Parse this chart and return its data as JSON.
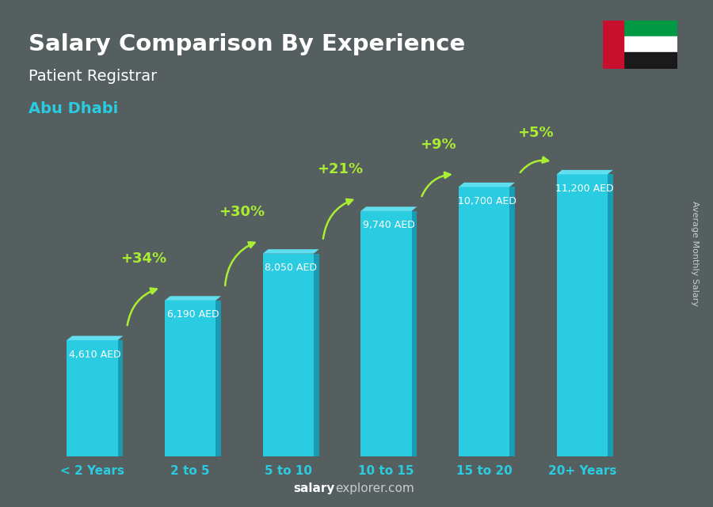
{
  "title": "Salary Comparison By Experience",
  "subtitle1": "Patient Registrar",
  "subtitle2": "Abu Dhabi",
  "ylabel": "Average Monthly Salary",
  "footer_bold": "salary",
  "footer_normal": "explorer.com",
  "categories": [
    "< 2 Years",
    "2 to 5",
    "5 to 10",
    "10 to 15",
    "15 to 20",
    "20+ Years"
  ],
  "values": [
    4610,
    6190,
    8050,
    9740,
    10700,
    11200
  ],
  "labels": [
    "4,610 AED",
    "6,190 AED",
    "8,050 AED",
    "9,740 AED",
    "10,700 AED",
    "11,200 AED"
  ],
  "pct_changes": [
    "+34%",
    "+30%",
    "+21%",
    "+9%",
    "+5%"
  ],
  "bar_color_face": "#29cce0",
  "bar_color_dark": "#1a9cb5",
  "bar_color_top": "#60dff0",
  "bg_color": "#6b7b7b",
  "title_color": "#ffffff",
  "subtitle1_color": "#ffffff",
  "subtitle2_color": "#29cce0",
  "label_color": "#ffffff",
  "pct_color": "#aaee33",
  "footer_color": "#cccccc",
  "footer_bold_color": "#ffffff",
  "arrow_color": "#aaee33",
  "xticklabel_color": "#29cce0",
  "ylabel_color": "#cccccc",
  "y_max": 14500
}
